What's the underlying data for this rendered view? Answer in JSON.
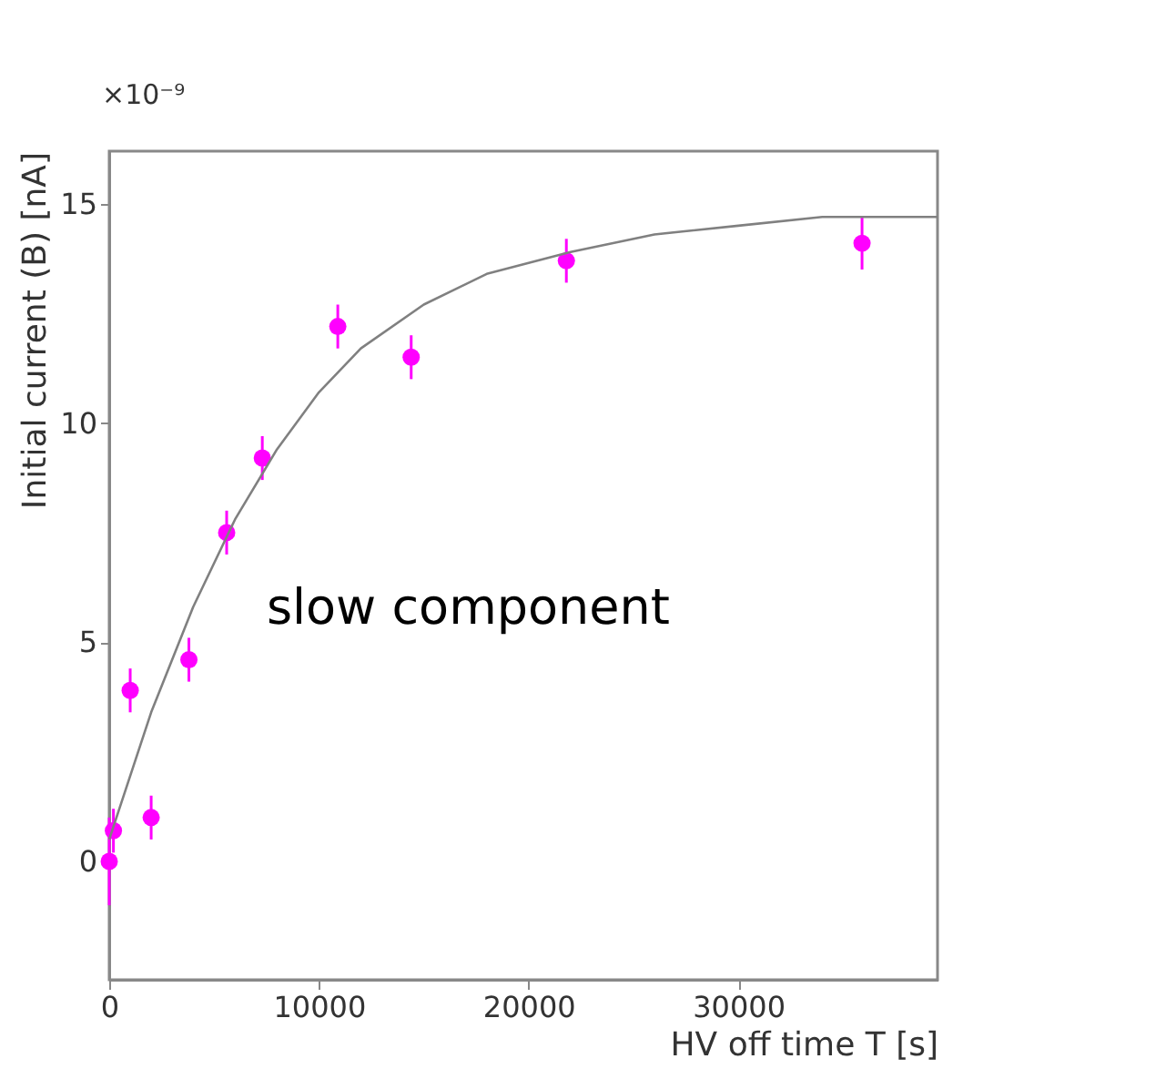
{
  "chart_data": {
    "type": "scatter",
    "xlabel": "HV off time T [s]",
    "ylabel": "Initial current (B) [nA]",
    "xlim": [
      0,
      39500
    ],
    "ylim": [
      -2.7,
      16.2
    ],
    "xticks": [
      0,
      10000,
      20000,
      30000
    ],
    "yticks": [
      0,
      5,
      10,
      15
    ],
    "grid": false,
    "marker": "circle",
    "annotations": [
      "×10⁻⁹",
      "slow component"
    ],
    "series": [
      {
        "color": "#ff00ff",
        "x": [
          0,
          200,
          1000,
          2000,
          3800,
          5600,
          7300,
          10900,
          14400,
          21800,
          35900
        ],
        "values": [
          0,
          0.7,
          3.9,
          1.0,
          4.6,
          7.5,
          9.2,
          12.2,
          11.5,
          13.7,
          14.1
        ],
        "errors": [
          1.0,
          0.5,
          0.5,
          0.5,
          0.5,
          0.5,
          0.5,
          0.5,
          0.5,
          0.5,
          0.6
        ]
      },
      {
        "type": "line",
        "color": "#808080",
        "marker": "none",
        "x": [
          0,
          2000,
          4000,
          6000,
          8000,
          10000,
          12000,
          15000,
          18000,
          22000,
          26000,
          30000,
          34000,
          39500
        ],
        "values": [
          0.5,
          3.4,
          5.8,
          7.8,
          9.4,
          10.7,
          11.7,
          12.7,
          13.4,
          13.9,
          14.3,
          14.5,
          14.7,
          14.7
        ]
      }
    ]
  }
}
